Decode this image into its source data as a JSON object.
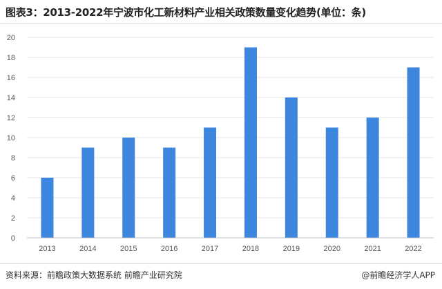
{
  "title": "图表3：2013-2022年宁波市化工新材料产业相关政策数量变化趋势(单位：条)",
  "source": "资料来源：前瞻政策大数据系统 前瞻产业研究院",
  "credit": "@前瞻经济学人APP",
  "colors": {
    "bar": "#3d86de",
    "grid": "#e6e6e6",
    "axis": "#bfbfbf"
  },
  "chart_data": {
    "type": "bar",
    "categories": [
      "2013",
      "2014",
      "2015",
      "2016",
      "2017",
      "2018",
      "2019",
      "2020",
      "2021",
      "2022"
    ],
    "values": [
      6,
      9,
      10,
      9,
      11,
      19,
      14,
      11,
      12,
      17
    ],
    "ylim": [
      0,
      20
    ],
    "yticks": [
      0,
      2,
      4,
      6,
      8,
      10,
      12,
      14,
      16,
      18,
      20
    ],
    "grid": true,
    "legend": "none"
  }
}
